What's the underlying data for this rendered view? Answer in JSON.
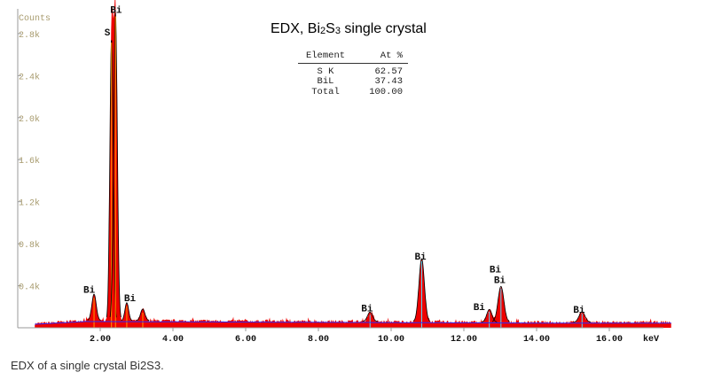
{
  "title_parts": {
    "a": "EDX, Bi",
    "b": "2",
    "c": "S",
    "d": "3",
    "e": " single crystal"
  },
  "table": {
    "headers": [
      "Element",
      "At %"
    ],
    "rows": [
      [
        "S K",
        "62.57"
      ],
      [
        "BiL",
        "37.43"
      ],
      [
        "Total",
        "100.00"
      ]
    ]
  },
  "caption": "EDX of a single crystal Bi2S3.",
  "chart_data": {
    "type": "area",
    "title": "EDX, Bi2S3 single crystal",
    "xlabel": "keV",
    "ylabel": "Counts",
    "xlim": [
      -0.27,
      17.7
    ],
    "ylim": [
      0,
      2800
    ],
    "x_ticks": [
      2,
      4,
      6,
      8,
      10,
      12,
      14,
      16
    ],
    "x_tick_labels": [
      "2.00",
      "4.00",
      "6.00",
      "8.00",
      "10.00",
      "12.00",
      "14.00",
      "16.00"
    ],
    "y_ticks": [
      400,
      800,
      1200,
      1600,
      2000,
      2400,
      2800
    ],
    "y_tick_labels": [
      "0.4k",
      "0.8k",
      "1.2k",
      "1.6k",
      "2.0k",
      "2.4k",
      "2.8k"
    ],
    "background_counts": 70,
    "peaks": [
      {
        "label": "Bi",
        "energy": 1.83,
        "counts": 250,
        "width": 0.06
      },
      {
        "label": "S",
        "energy": 2.31,
        "counts": 2680,
        "width": 0.045
      },
      {
        "label": "Bi",
        "energy": 2.42,
        "counts": 2930,
        "width": 0.05
      },
      {
        "label": "Bi",
        "energy": 2.73,
        "counts": 170,
        "width": 0.05
      },
      {
        "label": "",
        "energy": 3.17,
        "counts": 110,
        "width": 0.06
      },
      {
        "label": "Bi",
        "energy": 9.42,
        "counts": 90,
        "width": 0.07
      },
      {
        "label": "Bi",
        "energy": 10.84,
        "counts": 600,
        "width": 0.075
      },
      {
        "label": "Bi",
        "energy": 12.7,
        "counts": 120,
        "width": 0.07
      },
      {
        "label": "Bi",
        "energy": 13.02,
        "counts": 340,
        "width": 0.08
      },
      {
        "label": "Bi",
        "energy": 15.25,
        "counts": 100,
        "width": 0.08
      }
    ],
    "peak_labels": [
      {
        "text": "Bi",
        "energy": 1.83
      },
      {
        "text": "S",
        "energy": 2.31
      },
      {
        "text": "Bi",
        "energy": 2.42
      },
      {
        "text": "Bi",
        "energy": 2.73
      },
      {
        "text": "Bi",
        "energy": 9.42
      },
      {
        "text": "Bi",
        "energy": 10.84
      },
      {
        "text": "Bi",
        "energy": 12.7
      },
      {
        "text": "Bi",
        "energy": 13.02
      },
      {
        "text": "Bi",
        "energy": 13.02
      },
      {
        "text": "Bi",
        "energy": 15.25
      }
    ],
    "colors": {
      "spectrum": "#ee0000",
      "outline": "#000000",
      "background_fit": "#2b2bff",
      "markers": "#ff9900",
      "markers_L": "#55e0ff"
    }
  }
}
